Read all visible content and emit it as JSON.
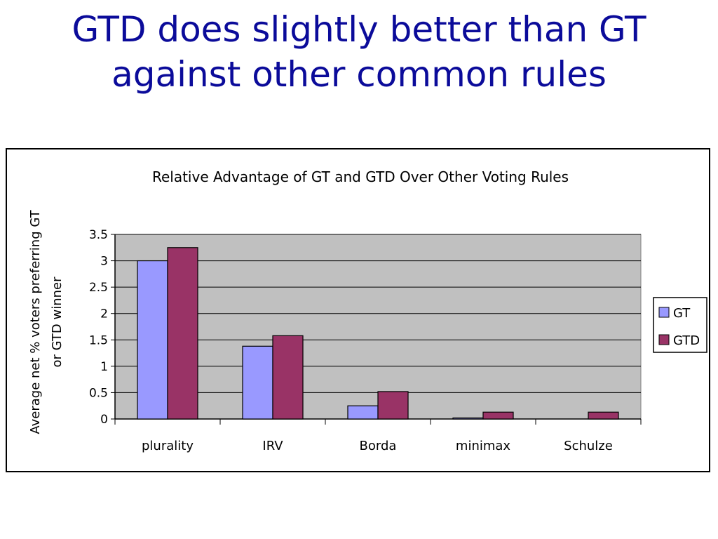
{
  "slide": {
    "title_line1": "GTD does slightly better than GT",
    "title_line2": "against other common rules"
  },
  "chart_data": {
    "type": "bar",
    "title": "Relative Advantage of GT and GTD Over Other Voting Rules",
    "xlabel": "",
    "ylabel_line1": "Average net % voters preferring GT",
    "ylabel_line2": "or GTD winner",
    "categories": [
      "plurality",
      "IRV",
      "Borda",
      "minimax",
      "Schulze"
    ],
    "series": [
      {
        "name": "GT",
        "values": [
          3.0,
          1.38,
          0.25,
          0.02,
          0.0
        ],
        "color": "#9999ff"
      },
      {
        "name": "GTD",
        "values": [
          3.25,
          1.58,
          0.52,
          0.13,
          0.13
        ],
        "color": "#993366"
      }
    ],
    "ylim": [
      0,
      3.5
    ],
    "yticks": [
      "0",
      "0.5",
      "1",
      "1.5",
      "2",
      "2.5",
      "3",
      "3.5"
    ],
    "ytick_values": [
      0,
      0.5,
      1,
      1.5,
      2,
      2.5,
      3,
      3.5
    ],
    "grid": true,
    "plot_background": "#c0c0c0",
    "legend_position": "right"
  }
}
